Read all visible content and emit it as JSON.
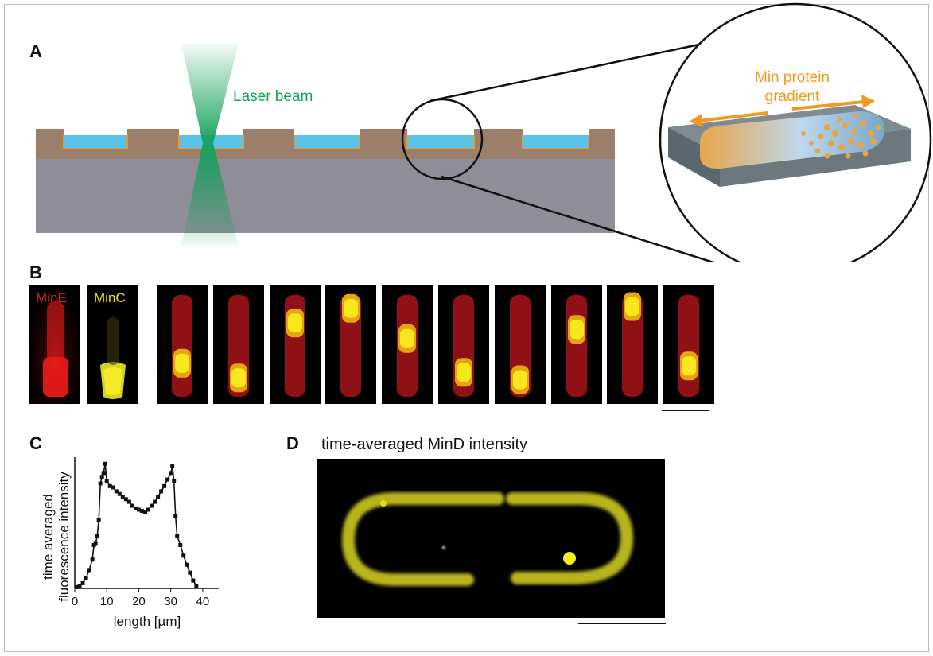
{
  "panels": {
    "a": {
      "label": "A",
      "laser_text": "Laser beam",
      "gradient_text_line1": "Min protein",
      "gradient_text_line2": "gradient"
    },
    "b": {
      "label": "B",
      "mine_text": "MinE",
      "minc_text": "MinC",
      "frame_count": 10
    },
    "c": {
      "label": "C",
      "ylabel_line1": "time averaged",
      "ylabel_line2": "fluorescence intensity",
      "xlabel": "length [µm]",
      "xticks": [
        "0",
        "10",
        "20",
        "30",
        "40"
      ]
    },
    "d": {
      "label": "D",
      "title": "time-averaged MinD intensity"
    }
  },
  "colors": {
    "laser_green": "#14a05a",
    "gradient_orange": "#ee9a22",
    "mine_red": "#e02020",
    "minc_yellow": "#f2e21a",
    "substrate_brown": "#9b7f6a",
    "substrate_gray": "#8f8d98",
    "buffer_blue": "#59c3ea"
  },
  "chart_data": {
    "type": "line",
    "xlabel": "length [µm]",
    "ylabel": "time averaged fluorescence intensity",
    "xlim": [
      0,
      45
    ],
    "ylim": [
      0,
      1
    ],
    "x": [
      0.5,
      1.5,
      2.5,
      3.5,
      4.5,
      5.5,
      6,
      6.5,
      7,
      7.5,
      8,
      8.5,
      9,
      9.5,
      10,
      11,
      12,
      13,
      14,
      15,
      16,
      17,
      18,
      19,
      20,
      21,
      22,
      23,
      24,
      25,
      26,
      27,
      28,
      29,
      30,
      30.5,
      31,
      31.5,
      32,
      33,
      34,
      35,
      36,
      37,
      38
    ],
    "y": [
      0.01,
      0.02,
      0.04,
      0.08,
      0.14,
      0.22,
      0.33,
      0.34,
      0.4,
      0.52,
      0.8,
      0.85,
      0.88,
      0.95,
      0.82,
      0.78,
      0.77,
      0.74,
      0.72,
      0.7,
      0.68,
      0.66,
      0.63,
      0.61,
      0.6,
      0.59,
      0.58,
      0.6,
      0.63,
      0.66,
      0.7,
      0.74,
      0.78,
      0.83,
      0.88,
      0.93,
      0.82,
      0.55,
      0.4,
      0.33,
      0.25,
      0.18,
      0.12,
      0.06,
      0.02
    ]
  }
}
